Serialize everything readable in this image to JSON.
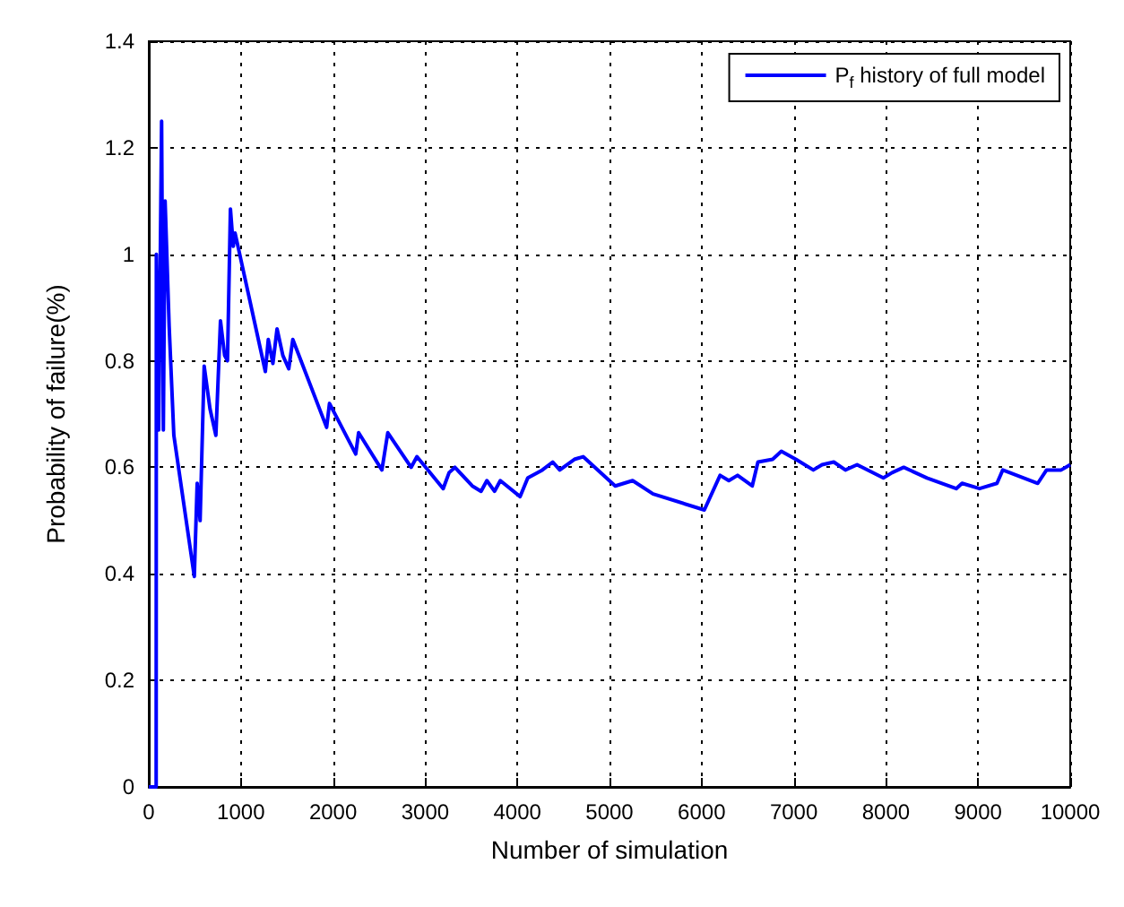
{
  "chart_data": {
    "type": "line",
    "xlabel": "Number of simulation",
    "ylabel": "Probability of failure(%)",
    "xlim": [
      0,
      10000
    ],
    "xticks": [
      0,
      1000,
      2000,
      3000,
      4000,
      5000,
      6000,
      7000,
      8000,
      9000,
      10000
    ],
    "ylim": [
      0,
      1.4
    ],
    "yticks": [
      0,
      0.2,
      0.4,
      0.6,
      0.8,
      1,
      1.2,
      1.4
    ],
    "grid": true,
    "legend": "top right",
    "marker": "none",
    "line_style": "solid",
    "series": [
      {
        "name": "P$_{f}$ history of full model",
        "color": "#0000ff",
        "x": [
          0,
          80,
          82,
          107,
          139,
          158,
          177,
          221,
          272,
          494,
          525,
          557,
          601,
          664,
          728,
          778,
          823,
          854,
          886,
          917,
          936,
          1265,
          1297,
          1347,
          1392,
          1455,
          1519,
          1563,
          1930,
          1961,
          2246,
          2277,
          2530,
          2594,
          2847,
          2910,
          3195,
          3259,
          3322,
          3511,
          3606,
          3669,
          3752,
          3815,
          4030,
          4113,
          4271,
          4384,
          4460,
          4619,
          4714,
          5062,
          5251,
          5473,
          6029,
          6200,
          6295,
          6390,
          6549,
          6611,
          6770,
          6865,
          7023,
          7212,
          7307,
          7434,
          7560,
          7687,
          7972,
          8067,
          8193,
          8446,
          8763,
          8826,
          9016,
          9205,
          9268,
          9648,
          9743,
          9902,
          10000
        ],
        "values": [
          0,
          0,
          1.0,
          0.67,
          1.25,
          0.67,
          1.1,
          0.865,
          0.66,
          0.395,
          0.57,
          0.5,
          0.79,
          0.71,
          0.66,
          0.875,
          0.81,
          0.8,
          1.085,
          1.015,
          1.04,
          0.78,
          0.84,
          0.795,
          0.86,
          0.81,
          0.785,
          0.84,
          0.675,
          0.72,
          0.625,
          0.665,
          0.595,
          0.665,
          0.6,
          0.62,
          0.56,
          0.59,
          0.6,
          0.565,
          0.555,
          0.575,
          0.555,
          0.575,
          0.545,
          0.58,
          0.595,
          0.61,
          0.595,
          0.615,
          0.62,
          0.565,
          0.575,
          0.55,
          0.52,
          0.585,
          0.575,
          0.585,
          0.565,
          0.61,
          0.615,
          0.63,
          0.615,
          0.595,
          0.605,
          0.61,
          0.595,
          0.605,
          0.58,
          0.59,
          0.6,
          0.58,
          0.56,
          0.57,
          0.56,
          0.57,
          0.595,
          0.57,
          0.595,
          0.595,
          0.605
        ]
      }
    ]
  }
}
